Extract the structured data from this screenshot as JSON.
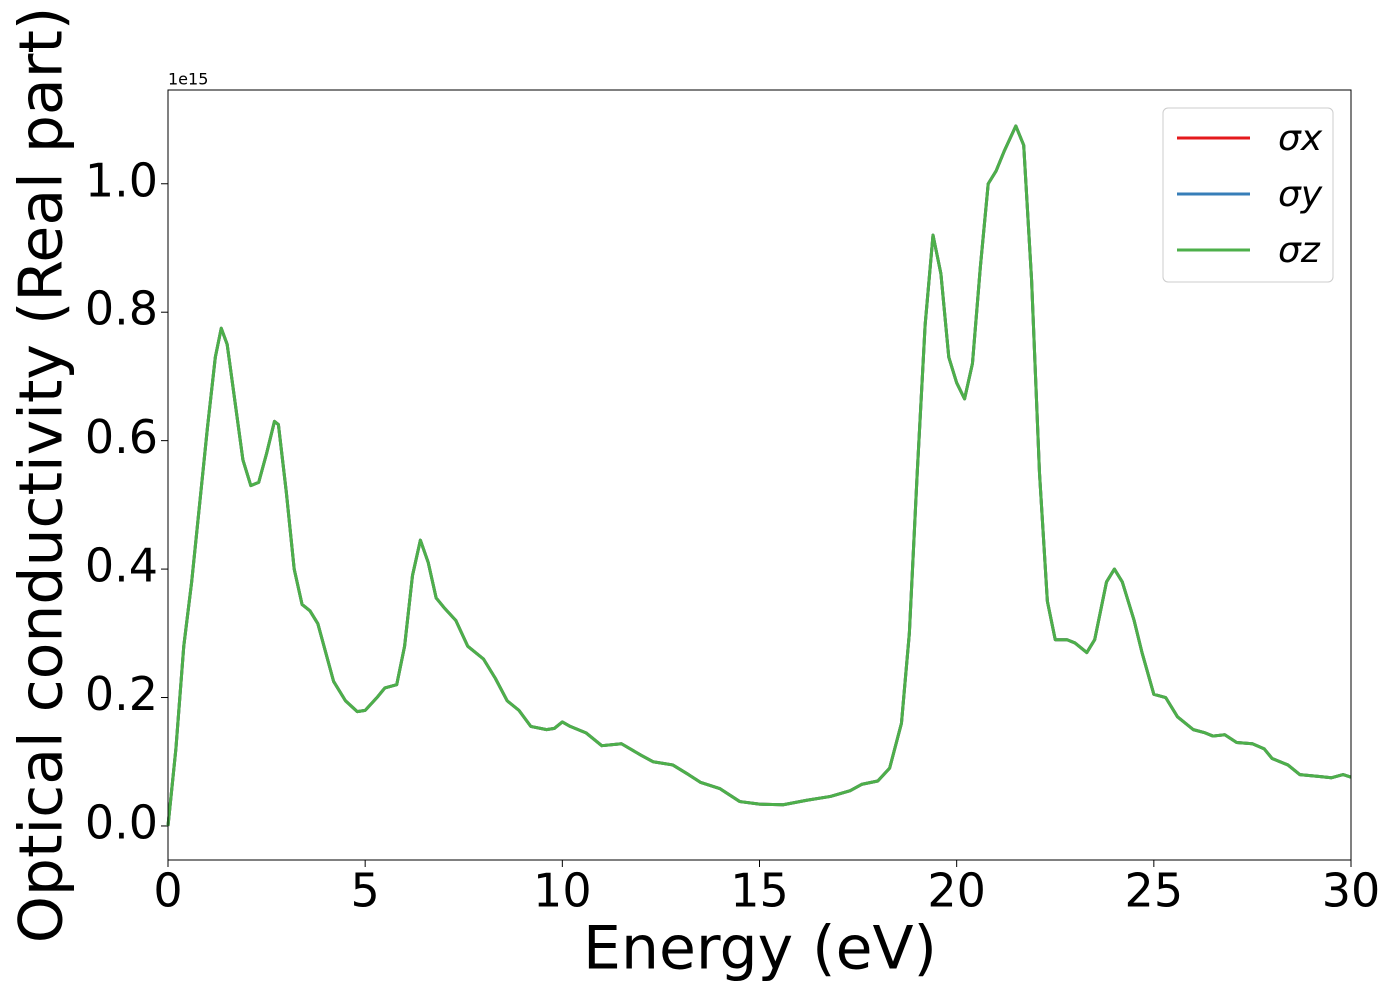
{
  "chart_data": {
    "type": "line",
    "xlabel": "Energy (eV)",
    "ylabel": "Optical conductivity (Real part)",
    "y_offset_label": "1e15",
    "xlim": [
      0,
      30
    ],
    "xticks": [
      0,
      5,
      10,
      15,
      20,
      25,
      30
    ],
    "ylim": [
      -0.053,
      1.146
    ],
    "yticks": [
      {
        "value": 0,
        "label": "0.0"
      },
      0.2,
      0.4,
      0.6,
      0.8,
      {
        "value": 1,
        "label": "1.0"
      }
    ],
    "grid": false,
    "legend": "upper right",
    "x": [
      0,
      0.2,
      0.4,
      0.6,
      0.8,
      1.0,
      1.2,
      1.35,
      1.5,
      1.7,
      1.9,
      2.1,
      2.3,
      2.5,
      2.7,
      2.8,
      3.0,
      3.2,
      3.4,
      3.6,
      3.8,
      4.0,
      4.2,
      4.5,
      4.8,
      5.0,
      5.3,
      5.5,
      5.8,
      6.0,
      6.2,
      6.4,
      6.6,
      6.8,
      7.0,
      7.3,
      7.6,
      8.0,
      8.3,
      8.6,
      8.9,
      9.2,
      9.6,
      9.8,
      10.0,
      10.2,
      10.6,
      11.0,
      11.5,
      12.0,
      12.3,
      12.8,
      13.2,
      13.5,
      14.0,
      14.5,
      15.0,
      15.6,
      16.2,
      16.8,
      17.3,
      17.6,
      18.0,
      18.3,
      18.6,
      18.8,
      19.0,
      19.2,
      19.4,
      19.6,
      19.8,
      20.0,
      20.2,
      20.4,
      20.6,
      20.8,
      21.0,
      21.2,
      21.5,
      21.7,
      21.9,
      22.1,
      22.3,
      22.5,
      22.8,
      23.0,
      23.3,
      23.5,
      23.8,
      24.0,
      24.2,
      24.5,
      24.7,
      25.0,
      25.3,
      25.6,
      26.0,
      26.3,
      26.5,
      26.8,
      27.1,
      27.5,
      27.8,
      28.0,
      28.4,
      28.7,
      29.2,
      29.5,
      29.8,
      30.0
    ],
    "series": [
      {
        "name": "σx",
        "color": "#e41a1c",
        "values": [
          0.0,
          0.12,
          0.28,
          0.38,
          0.5,
          0.62,
          0.73,
          0.775,
          0.75,
          0.66,
          0.57,
          0.53,
          0.535,
          0.58,
          0.63,
          0.625,
          0.52,
          0.4,
          0.345,
          0.335,
          0.315,
          0.27,
          0.225,
          0.195,
          0.178,
          0.18,
          0.2,
          0.215,
          0.22,
          0.28,
          0.39,
          0.445,
          0.41,
          0.355,
          0.34,
          0.32,
          0.28,
          0.26,
          0.23,
          0.195,
          0.18,
          0.155,
          0.15,
          0.152,
          0.162,
          0.155,
          0.145,
          0.125,
          0.128,
          0.11,
          0.1,
          0.095,
          0.08,
          0.068,
          0.058,
          0.038,
          0.034,
          0.033,
          0.04,
          0.046,
          0.055,
          0.065,
          0.07,
          0.09,
          0.16,
          0.3,
          0.55,
          0.78,
          0.92,
          0.86,
          0.73,
          0.69,
          0.665,
          0.72,
          0.87,
          1.0,
          1.02,
          1.05,
          1.09,
          1.06,
          0.85,
          0.55,
          0.35,
          0.29,
          0.29,
          0.285,
          0.27,
          0.29,
          0.38,
          0.4,
          0.38,
          0.32,
          0.27,
          0.205,
          0.2,
          0.17,
          0.15,
          0.145,
          0.14,
          0.142,
          0.13,
          0.128,
          0.12,
          0.105,
          0.095,
          0.08,
          0.077,
          0.075,
          0.08,
          0.076
        ]
      },
      {
        "name": "σy",
        "color": "#377eb8",
        "values": [
          0.0,
          0.12,
          0.28,
          0.38,
          0.5,
          0.62,
          0.73,
          0.775,
          0.75,
          0.66,
          0.57,
          0.53,
          0.535,
          0.58,
          0.63,
          0.625,
          0.52,
          0.4,
          0.345,
          0.335,
          0.315,
          0.27,
          0.225,
          0.195,
          0.178,
          0.18,
          0.2,
          0.215,
          0.22,
          0.28,
          0.39,
          0.445,
          0.41,
          0.355,
          0.34,
          0.32,
          0.28,
          0.26,
          0.23,
          0.195,
          0.18,
          0.155,
          0.15,
          0.152,
          0.162,
          0.155,
          0.145,
          0.125,
          0.128,
          0.11,
          0.1,
          0.095,
          0.08,
          0.068,
          0.058,
          0.038,
          0.034,
          0.033,
          0.04,
          0.046,
          0.055,
          0.065,
          0.07,
          0.09,
          0.16,
          0.3,
          0.55,
          0.78,
          0.92,
          0.86,
          0.73,
          0.69,
          0.665,
          0.72,
          0.87,
          1.0,
          1.02,
          1.05,
          1.09,
          1.06,
          0.85,
          0.55,
          0.35,
          0.29,
          0.29,
          0.285,
          0.27,
          0.29,
          0.38,
          0.4,
          0.38,
          0.32,
          0.27,
          0.205,
          0.2,
          0.17,
          0.15,
          0.145,
          0.14,
          0.142,
          0.13,
          0.128,
          0.12,
          0.105,
          0.095,
          0.08,
          0.077,
          0.075,
          0.08,
          0.076
        ]
      },
      {
        "name": "σz",
        "color": "#4daf4a",
        "values": [
          0.0,
          0.12,
          0.28,
          0.38,
          0.5,
          0.62,
          0.73,
          0.775,
          0.75,
          0.66,
          0.57,
          0.53,
          0.535,
          0.58,
          0.63,
          0.625,
          0.52,
          0.4,
          0.345,
          0.335,
          0.315,
          0.27,
          0.225,
          0.195,
          0.178,
          0.18,
          0.2,
          0.215,
          0.22,
          0.28,
          0.39,
          0.445,
          0.41,
          0.355,
          0.34,
          0.32,
          0.28,
          0.26,
          0.23,
          0.195,
          0.18,
          0.155,
          0.15,
          0.152,
          0.162,
          0.155,
          0.145,
          0.125,
          0.128,
          0.11,
          0.1,
          0.095,
          0.08,
          0.068,
          0.058,
          0.038,
          0.034,
          0.033,
          0.04,
          0.046,
          0.055,
          0.065,
          0.07,
          0.09,
          0.16,
          0.3,
          0.55,
          0.78,
          0.92,
          0.86,
          0.73,
          0.69,
          0.665,
          0.72,
          0.87,
          1.0,
          1.02,
          1.05,
          1.09,
          1.06,
          0.85,
          0.55,
          0.35,
          0.29,
          0.29,
          0.285,
          0.27,
          0.29,
          0.38,
          0.4,
          0.38,
          0.32,
          0.27,
          0.205,
          0.2,
          0.17,
          0.15,
          0.145,
          0.14,
          0.142,
          0.13,
          0.128,
          0.12,
          0.105,
          0.095,
          0.08,
          0.077,
          0.075,
          0.08,
          0.076
        ]
      }
    ]
  }
}
